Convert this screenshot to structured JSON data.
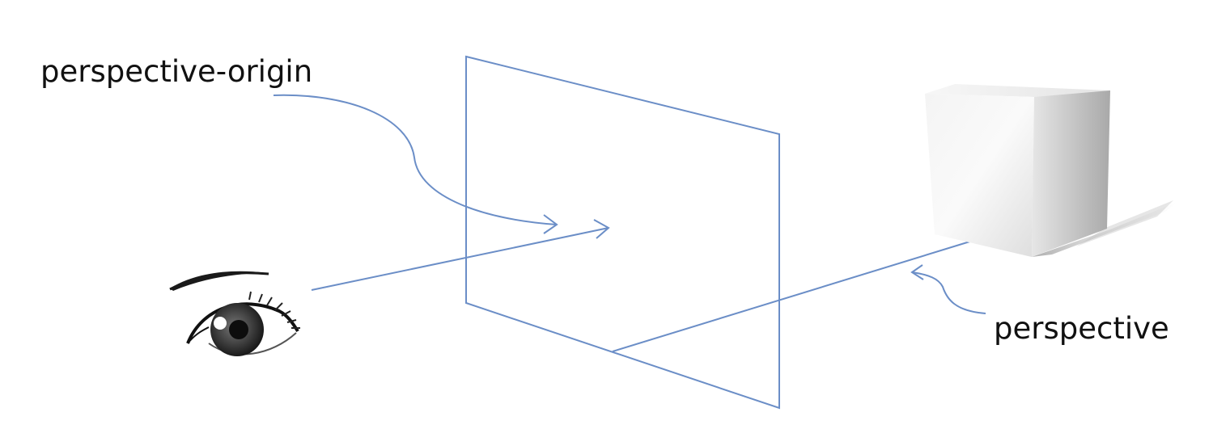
{
  "labels": {
    "perspective_origin": "perspective-origin",
    "perspective": "perspective"
  },
  "colors": {
    "line": "#6b8ec7",
    "text": "#111111",
    "background": "#ffffff"
  },
  "icons": {
    "viewer": "eye-icon",
    "object": "cube-icon"
  }
}
